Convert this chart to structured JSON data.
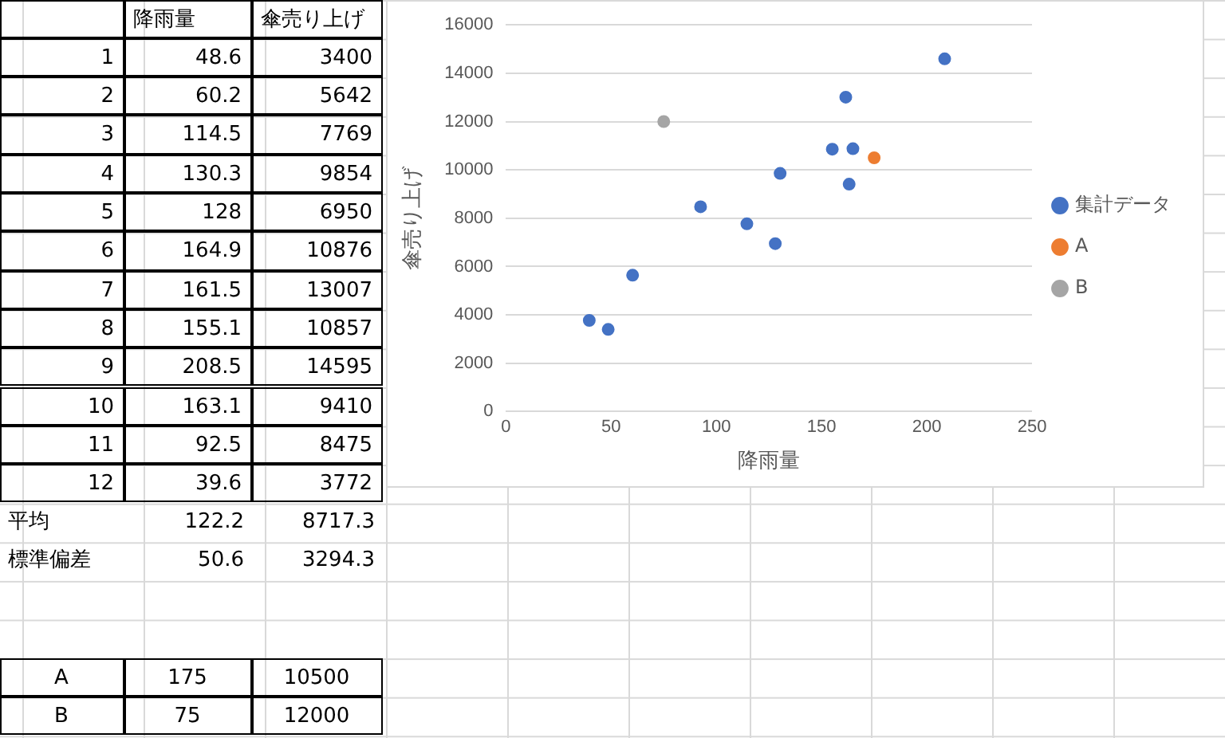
{
  "chart_data": {
    "type": "scatter",
    "xlabel": "降雨量",
    "ylabel": "傘売り上げ",
    "xlim": [
      0,
      250
    ],
    "xticks": [
      0,
      50,
      100,
      150,
      200,
      250
    ],
    "ylim": [
      0,
      16000
    ],
    "yticks": [
      0,
      2000,
      4000,
      6000,
      8000,
      10000,
      12000,
      14000,
      16000
    ],
    "grid": "y",
    "legend": "right",
    "marker": "circle",
    "series": [
      {
        "name": "集計データ",
        "color": "#4472c4",
        "x": [
          48.6,
          60.2,
          114.5,
          130.3,
          128,
          164.9,
          161.5,
          155.1,
          208.5,
          163.1,
          92.5,
          39.6
        ],
        "values": [
          3400,
          5642,
          7769,
          9854,
          6950,
          10876,
          13007,
          10857,
          14595,
          9410,
          8475,
          3772
        ]
      },
      {
        "name": "A",
        "color": "#ed7d31",
        "x": [
          175
        ],
        "values": [
          10500
        ]
      },
      {
        "name": "B",
        "color": "#a5a5a5",
        "x": [
          75
        ],
        "values": [
          12000
        ]
      }
    ],
    "annotations": [
      "1",
      "48.6",
      "3400",
      "2",
      "60.2",
      "5642",
      "3",
      "114.5",
      "7769",
      "4",
      "130.3",
      "9854",
      "5",
      "128",
      "6950",
      "6",
      "164.9",
      "10876",
      "7",
      "161.5",
      "13007",
      "8",
      "155.1",
      "10857",
      "9",
      "208.5",
      "14595",
      "10",
      "163.1",
      "9410",
      "11",
      "92.5",
      "8475",
      "12",
      "39.6",
      "3772",
      "平均",
      "122.2",
      "8717.3",
      "標準偏差",
      "50.6",
      "3294.3",
      "A",
      "175",
      "10500",
      "B",
      "75",
      "12000"
    ]
  }
}
